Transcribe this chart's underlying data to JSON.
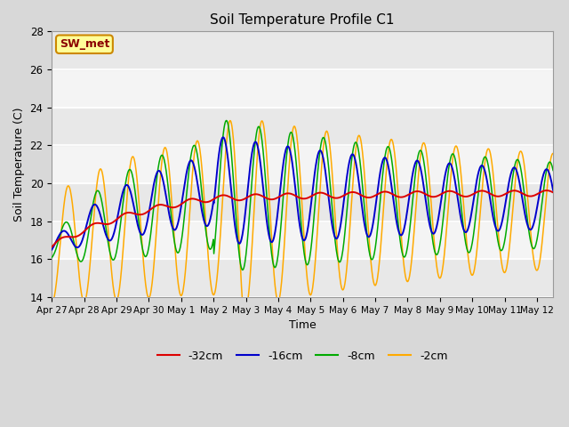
{
  "title": "Soil Temperature Profile C1",
  "xlabel": "Time",
  "ylabel": "Soil Temperature (C)",
  "ylim": [
    14,
    28
  ],
  "xlim": [
    0,
    15.5
  ],
  "annotation": "SW_met",
  "plot_bg_color": "#f0f0f0",
  "grid_color": "white",
  "legend_labels": [
    "-32cm",
    "-16cm",
    "-8cm",
    "-2cm"
  ],
  "legend_colors": [
    "#dd0000",
    "#0000cc",
    "#00aa00",
    "#ffaa00"
  ],
  "xtick_labels": [
    "Apr 27",
    "Apr 28",
    "Apr 29",
    "Apr 30",
    "May 1",
    "May 2",
    "May 3",
    "May 4",
    "May 5",
    "May 6",
    "May 7",
    "May 8",
    "May 9",
    "May 10",
    "May 11",
    "May 12"
  ],
  "xtick_positions": [
    0,
    1,
    2,
    3,
    4,
    5,
    6,
    7,
    8,
    9,
    10,
    11,
    12,
    13,
    14,
    15
  ],
  "ytick_positions": [
    14,
    16,
    18,
    20,
    22,
    24,
    26,
    28
  ],
  "figsize": [
    6.4,
    4.8
  ],
  "dpi": 100
}
